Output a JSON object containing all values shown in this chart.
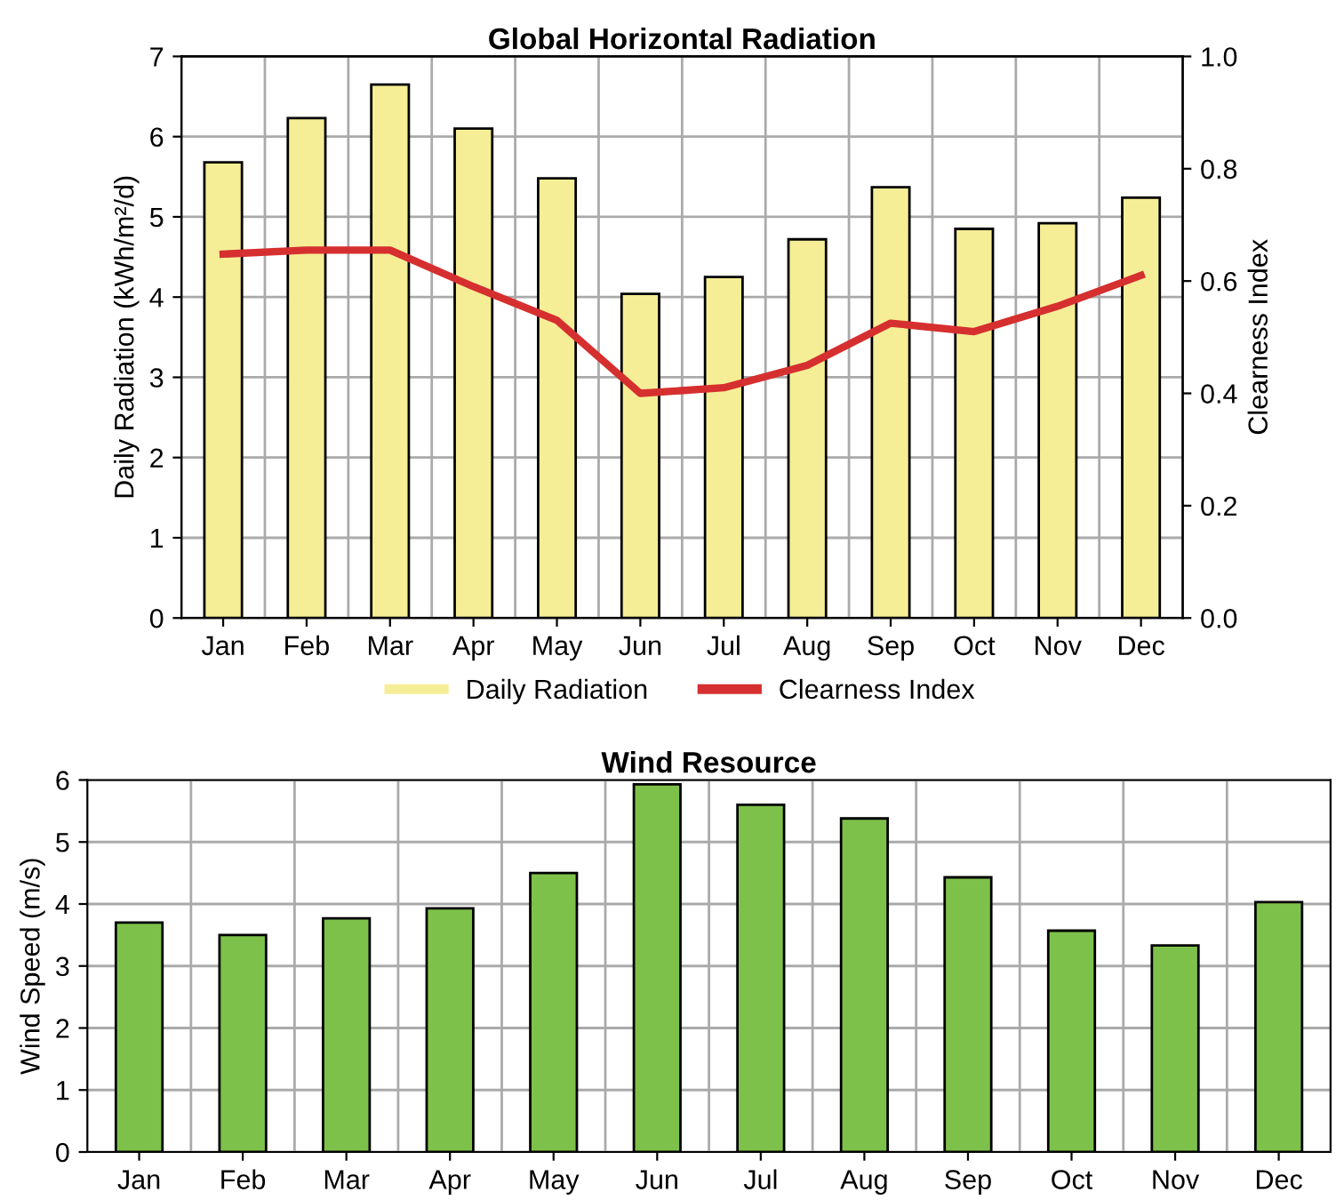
{
  "chart_data": [
    {
      "type": "bar",
      "title": "Global Horizontal Radiation",
      "ylabel": "Daily Radiation (kWh/m²/d)",
      "y2label": "Clearness Index",
      "categories": [
        "Jan",
        "Feb",
        "Mar",
        "Apr",
        "May",
        "Jun",
        "Jul",
        "Aug",
        "Sep",
        "Oct",
        "Nov",
        "Dec"
      ],
      "series": [
        {
          "name": "Daily Radiation",
          "color": "#f5ee96",
          "values": [
            5.68,
            6.23,
            6.65,
            6.1,
            5.48,
            4.04,
            4.25,
            4.72,
            5.37,
            4.85,
            4.92,
            5.24
          ]
        },
        {
          "name": "Clearness Index",
          "type": "line",
          "axis": "y2",
          "color": "#d62f2f",
          "values": [
            0.648,
            0.655,
            0.655,
            0.59,
            0.53,
            0.4,
            0.41,
            0.45,
            0.525,
            0.51,
            0.555,
            0.61
          ]
        }
      ],
      "ylim": [
        0,
        7
      ],
      "yticks": [
        0,
        1,
        2,
        3,
        4,
        5,
        6,
        7
      ],
      "y2lim": [
        0,
        1
      ],
      "y2ticks": [
        {
          "value": 0,
          "label": "0.0"
        },
        0.2,
        0.4,
        0.6,
        0.8,
        {
          "value": 1,
          "label": "1.0"
        }
      ],
      "grid": true,
      "legend": "bottom",
      "marker": "none",
      "line_style": "solid"
    },
    {
      "type": "bar",
      "title": "Wind Resource",
      "ylabel": "Wind Speed (m/s)",
      "categories": [
        "Jan",
        "Feb",
        "Mar",
        "Apr",
        "May",
        "Jun",
        "Jul",
        "Aug",
        "Sep",
        "Oct",
        "Nov",
        "Dec"
      ],
      "series": [
        {
          "color": "#7dc14a",
          "values": [
            3.7,
            3.5,
            3.77,
            3.93,
            4.5,
            5.93,
            5.6,
            5.38,
            4.43,
            3.57,
            3.33,
            4.03
          ]
        }
      ],
      "ylim": [
        0,
        6
      ],
      "yticks": [
        0,
        1,
        2,
        3,
        4,
        5,
        6
      ],
      "grid": true,
      "legend": false
    }
  ]
}
